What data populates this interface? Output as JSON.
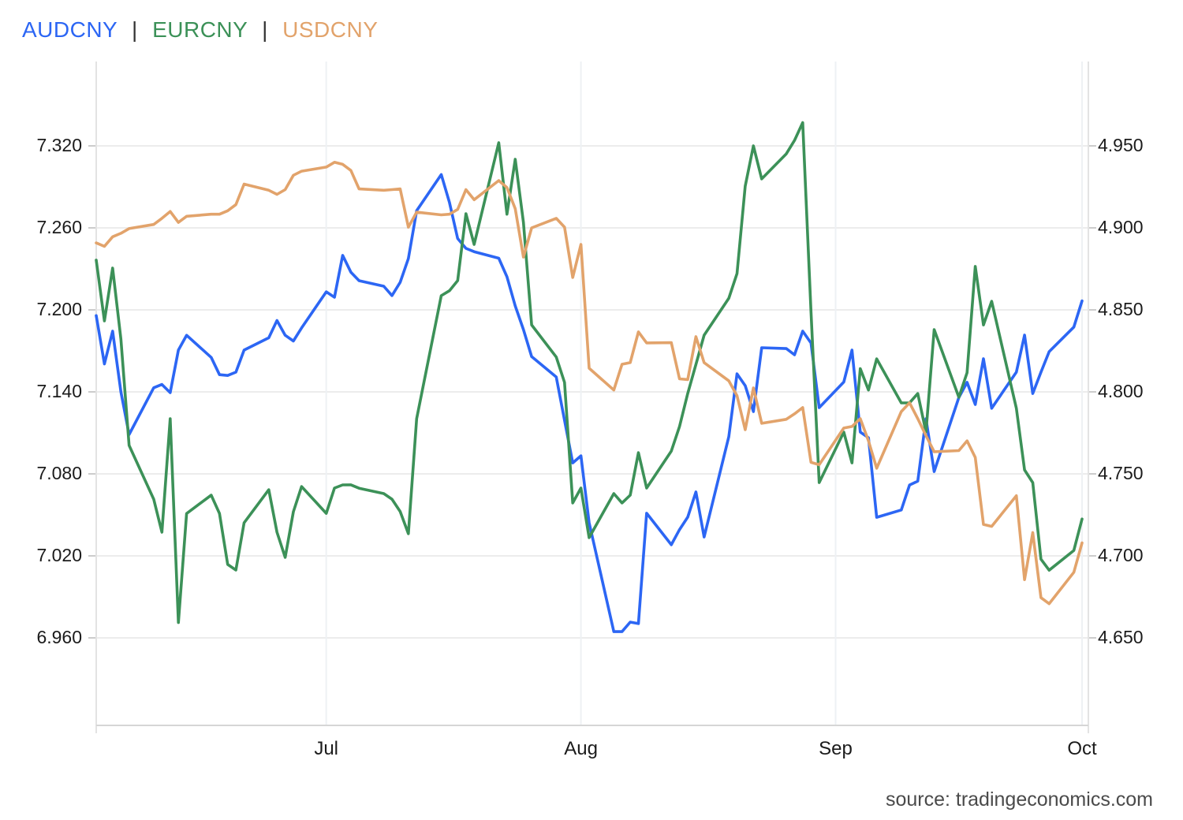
{
  "legend": {
    "separator": "|",
    "items": [
      {
        "label": "AUDCNY",
        "color": "#2c66f4"
      },
      {
        "label": "EURCNY",
        "color": "#3c9158"
      },
      {
        "label": "USDCNY",
        "color": "#e2a36b"
      }
    ]
  },
  "source_note": "source: tradingeconomics.com",
  "chart_data": {
    "type": "line",
    "grid": true,
    "legend_position": "top-left",
    "x_axis": {
      "tick_labels": [
        "Jul",
        "Aug",
        "Sep",
        "Oct"
      ],
      "tick_dates": [
        "07-01",
        "08-01",
        "09-01",
        "10-01"
      ],
      "range_dates": [
        "06-03",
        "10-01"
      ]
    },
    "left_axis": {
      "tick_labels": [
        "7.320",
        "7.260",
        "7.200",
        "7.140",
        "7.080",
        "7.020",
        "6.960"
      ],
      "max": 7.32,
      "min": 6.96,
      "step": 0.06
    },
    "right_axis": {
      "tick_labels": [
        "4.950",
        "4.900",
        "4.850",
        "4.800",
        "4.750",
        "4.700",
        "4.650"
      ],
      "max": 4.95,
      "min": 4.65,
      "step": 0.05
    },
    "dates": [
      "06-03",
      "06-04",
      "06-05",
      "06-06",
      "06-07",
      "06-10",
      "06-11",
      "06-12",
      "06-13",
      "06-14",
      "06-17",
      "06-18",
      "06-19",
      "06-20",
      "06-21",
      "06-24",
      "06-25",
      "06-26",
      "06-27",
      "06-28",
      "07-01",
      "07-02",
      "07-03",
      "07-04",
      "07-05",
      "07-08",
      "07-09",
      "07-10",
      "07-11",
      "07-12",
      "07-15",
      "07-16",
      "07-17",
      "07-18",
      "07-19",
      "07-22",
      "07-23",
      "07-24",
      "07-25",
      "07-26",
      "07-29",
      "07-30",
      "07-31",
      "08-01",
      "08-02",
      "08-05",
      "08-06",
      "08-07",
      "08-08",
      "08-09",
      "08-12",
      "08-13",
      "08-14",
      "08-15",
      "08-16",
      "08-19",
      "08-20",
      "08-21",
      "08-22",
      "08-23",
      "08-26",
      "08-27",
      "08-28",
      "08-29",
      "08-30",
      "09-02",
      "09-03",
      "09-04",
      "09-05",
      "09-06",
      "09-09",
      "09-10",
      "09-11",
      "09-12",
      "09-13",
      "09-16",
      "09-17",
      "09-18",
      "09-19",
      "09-20",
      "09-23",
      "09-24",
      "09-25",
      "09-26",
      "09-27",
      "09-30",
      "10-01"
    ],
    "series": [
      {
        "name": "AUDCNY",
        "axis": "right",
        "color": "#2c66f4",
        "values": [
          4.8465,
          4.817,
          4.837,
          4.8,
          4.774,
          4.8025,
          4.8045,
          4.7995,
          4.8255,
          4.8345,
          4.821,
          4.8105,
          4.81,
          4.812,
          4.8255,
          4.833,
          4.8435,
          4.8345,
          4.831,
          4.839,
          4.861,
          4.8577,
          4.8832,
          4.873,
          4.8678,
          4.8644,
          4.8587,
          4.8668,
          4.8813,
          4.9105,
          4.9325,
          4.9155,
          4.8935,
          4.8875,
          4.8855,
          4.8815,
          4.8702,
          4.8524,
          4.838,
          4.8215,
          4.8091,
          4.7827,
          4.7567,
          4.761,
          4.7202,
          4.6538,
          4.6538,
          4.6596,
          4.6587,
          4.726,
          4.7068,
          4.716,
          4.7236,
          4.739,
          4.7115,
          4.7727,
          4.811,
          4.8038,
          4.788,
          4.8269,
          4.8264,
          4.8226,
          4.837,
          4.8298,
          4.7904,
          4.806,
          4.8255,
          4.7755,
          4.772,
          4.7235,
          4.728,
          4.7432,
          4.7456,
          4.7836,
          4.7514,
          4.7966,
          4.8058,
          4.7923,
          4.8202,
          4.79,
          4.812,
          4.8346,
          4.799,
          4.812,
          4.8245,
          4.8395,
          4.8555
        ]
      },
      {
        "name": "EURCNY",
        "axis": "left",
        "color": "#3c9158",
        "values": [
          7.2364,
          7.1919,
          7.2306,
          7.1786,
          7.1008,
          7.0615,
          7.0373,
          7.1204,
          6.9712,
          7.051,
          7.0644,
          7.051,
          7.0137,
          7.0096,
          7.0442,
          7.0684,
          7.0373,
          7.0189,
          7.0523,
          7.0707,
          7.0511,
          7.0696,
          7.0719,
          7.072,
          7.0695,
          7.0656,
          7.0615,
          7.0525,
          7.0362,
          7.1204,
          7.2104,
          7.214,
          7.2214,
          7.2704,
          7.2479,
          7.3223,
          7.27,
          7.3102,
          7.264,
          7.189,
          7.1655,
          7.1469,
          7.0587,
          7.0696,
          7.0333,
          7.0656,
          7.0587,
          7.0644,
          7.0955,
          7.0696,
          7.0967,
          7.1147,
          7.1388,
          7.16,
          7.1815,
          7.2085,
          7.2266,
          7.2905,
          7.32,
          7.2958,
          7.3142,
          7.324,
          7.337,
          7.1988,
          7.0736,
          7.1106,
          7.088,
          7.157,
          7.1413,
          7.1642,
          7.1319,
          7.132,
          7.1388,
          7.1106,
          7.1856,
          7.136,
          7.154,
          7.2318,
          7.189,
          7.2063,
          7.128,
          7.0829,
          7.0736,
          7.0176,
          7.0095,
          7.024,
          7.047
        ]
      },
      {
        "name": "USDCNY",
        "axis": "left",
        "color": "#e2a36b",
        "values": [
          7.249,
          7.2465,
          7.2535,
          7.256,
          7.2595,
          7.2625,
          7.267,
          7.272,
          7.264,
          7.2685,
          7.27,
          7.27,
          7.2725,
          7.277,
          7.292,
          7.2875,
          7.2845,
          7.288,
          7.2985,
          7.3015,
          7.3045,
          7.308,
          7.3065,
          7.302,
          7.2885,
          7.2875,
          7.288,
          7.2885,
          7.2605,
          7.2715,
          7.2695,
          7.27,
          7.2735,
          7.288,
          7.2806,
          7.2946,
          7.2895,
          7.274,
          7.2386,
          7.26,
          7.267,
          7.2605,
          7.2237,
          7.2479,
          7.1573,
          7.1413,
          7.1602,
          7.1614,
          7.1839,
          7.1758,
          7.176,
          7.1495,
          7.149,
          7.1804,
          7.1614,
          7.1481,
          7.1372,
          7.1123,
          7.1429,
          7.117,
          7.1199,
          7.1239,
          7.1285,
          7.0884,
          7.0867,
          7.1135,
          7.1147,
          7.1204,
          7.1042,
          7.0841,
          7.1256,
          7.132,
          7.1204,
          7.108,
          7.0962,
          7.097,
          7.1042,
          7.092,
          7.043,
          7.0416,
          7.064,
          7.0026,
          7.037,
          6.9894,
          6.985,
          7.008,
          7.0295
        ]
      }
    ]
  }
}
